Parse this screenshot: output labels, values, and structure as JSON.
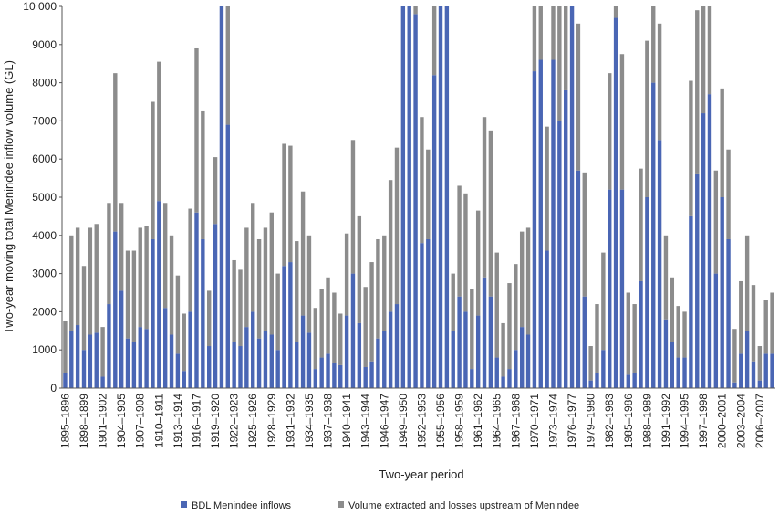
{
  "chart_data": {
    "type": "stacked_bar",
    "y_label": "Two-year moving total Menindee inflow volume (GL)",
    "x_label": "Two-year period",
    "categories": [
      "1895–1896",
      null,
      null,
      "1898–1899",
      null,
      null,
      "1901–1902",
      null,
      null,
      "1904–1905",
      null,
      null,
      "1907–1908",
      null,
      null,
      "1910–1911",
      null,
      null,
      "1913–1914",
      null,
      null,
      "1916–1917",
      null,
      null,
      "1919–1920",
      null,
      null,
      "1922–1923",
      null,
      null,
      "1925–1926",
      null,
      null,
      "1928–1929",
      null,
      null,
      "1931–1932",
      null,
      null,
      "1934–1935",
      null,
      null,
      "1937–1938",
      null,
      null,
      "1940–1941",
      null,
      null,
      "1943–1944",
      null,
      null,
      "1946–1947",
      null,
      null,
      "1949–1950",
      null,
      null,
      "1952–1953",
      null,
      null,
      "1955–1956",
      null,
      null,
      "1958–1959",
      null,
      null,
      "1961–1962",
      null,
      null,
      "1964–1965",
      null,
      null,
      "1967–1968",
      null,
      null,
      "1970–1971",
      null,
      null,
      "1973–1974",
      null,
      null,
      "1976–1977",
      null,
      null,
      "1979–1980",
      null,
      null,
      "1982–1983",
      null,
      null,
      "1985–1986",
      null,
      null,
      "1988–1989",
      null,
      null,
      "1991–1992",
      null,
      null,
      "1994–1995",
      null,
      null,
      "1997–1998",
      null,
      null,
      "2000–2001",
      null,
      null,
      "2003–2004",
      null,
      null,
      "2006–2007",
      null,
      null
    ],
    "series": [
      {
        "name": "BDL Menindee inflows",
        "color": "#4a66b4",
        "values": [
          400,
          1500,
          1650,
          1000,
          1400,
          1450,
          300,
          2200,
          4100,
          2550,
          1300,
          1200,
          1600,
          1550,
          3900,
          4900,
          2100,
          1400,
          900,
          450,
          2000,
          4600,
          3900,
          1100,
          4300,
          10000,
          6900,
          1200,
          1100,
          1600,
          2000,
          1300,
          1500,
          1400,
          1000,
          3200,
          3300,
          1200,
          1900,
          1450,
          500,
          800,
          900,
          650,
          600,
          1900,
          3000,
          1700,
          550,
          700,
          1300,
          1500,
          2000,
          2200,
          10000,
          10000,
          9800,
          3800,
          3900,
          8200,
          10000,
          10000,
          1500,
          2400,
          2000,
          500,
          1900,
          2900,
          2400,
          800,
          300,
          500,
          1000,
          1600,
          1400,
          8300,
          8600,
          3600,
          8600,
          7000,
          7800,
          10000,
          5700,
          2400,
          200,
          400,
          1000,
          5200,
          9700,
          5200,
          350,
          400,
          2800,
          5000,
          8000,
          6500,
          1800,
          1200,
          800,
          800,
          4500,
          5600,
          7200,
          7700,
          3000,
          5000,
          3900,
          150,
          900,
          1500,
          700,
          200,
          900,
          900
        ]
      },
      {
        "name": "Volume extracted and losses upstream of Menindee",
        "color": "#8c8c8c",
        "values": [
          1350,
          2500,
          2550,
          2200,
          2800,
          2850,
          1300,
          2650,
          4150,
          2300,
          2300,
          2400,
          2600,
          2700,
          3600,
          3650,
          2750,
          2600,
          2050,
          1500,
          2700,
          4300,
          3350,
          1450,
          1750,
          0,
          3100,
          2150,
          2000,
          2600,
          2850,
          2600,
          2700,
          3200,
          2000,
          3200,
          3050,
          2650,
          3250,
          2550,
          1600,
          1800,
          2000,
          1850,
          1350,
          2150,
          3500,
          2800,
          2100,
          2600,
          2600,
          2500,
          3450,
          4100,
          0,
          0,
          200,
          3300,
          2350,
          1800,
          0,
          0,
          1500,
          2900,
          3100,
          2100,
          2750,
          4200,
          4350,
          2750,
          1400,
          2250,
          2250,
          2500,
          2800,
          1700,
          1400,
          3250,
          1400,
          3000,
          2200,
          0,
          3850,
          3250,
          900,
          1800,
          2550,
          3050,
          300,
          3550,
          2150,
          1800,
          2950,
          4100,
          2000,
          3050,
          2200,
          1700,
          1350,
          1200,
          3550,
          4300,
          2800,
          2300,
          2700,
          2850,
          2350,
          1400,
          1900,
          2500,
          2000,
          900,
          1400,
          1600
        ]
      }
    ],
    "ylim": [
      0,
      10000
    ],
    "yticks": [
      0,
      1000,
      2000,
      3000,
      4000,
      5000,
      6000,
      7000,
      8000,
      9000,
      {
        "value": 10000,
        "label": "10 000"
      }
    ]
  }
}
